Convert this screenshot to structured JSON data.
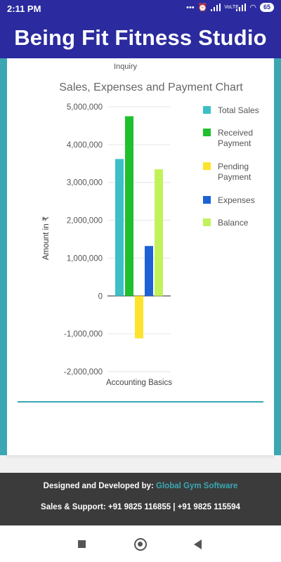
{
  "status_bar": {
    "time": "2:11 PM",
    "battery": "65",
    "volte": "VoLTE"
  },
  "app": {
    "title": "Being Fit Fitness Studio"
  },
  "card": {
    "prev_section_label": "Inquiry"
  },
  "chart_data": {
    "type": "bar",
    "title": "Sales, Expenses and Payment Chart",
    "categories": [
      "Accounting Basics"
    ],
    "xlabel": "Accounting Basics",
    "ylabel": "Amount in ₹",
    "ylim": [
      -2000000,
      5000000
    ],
    "yticks": [
      5000000,
      4000000,
      3000000,
      2000000,
      1000000,
      0,
      -1000000,
      -2000000
    ],
    "ytick_labels": [
      "5,000,000",
      "4,000,000",
      "3,000,000",
      "2,000,000",
      "1,000,000",
      "0",
      "-1,000,000",
      "-2,000,000"
    ],
    "legend_position": "right",
    "grid": true,
    "series": [
      {
        "name": "Total Sales",
        "legend_lines": [
          "Total Sales"
        ],
        "values": [
          3620000
        ],
        "color": "#3dbfc7"
      },
      {
        "name": "Received Payment",
        "legend_lines": [
          "Received",
          "Payment"
        ],
        "values": [
          4750000
        ],
        "color": "#1fc02d"
      },
      {
        "name": "Pending Payment",
        "legend_lines": [
          "Pending",
          "Payment"
        ],
        "values": [
          -1120000
        ],
        "color": "#fde32b"
      },
      {
        "name": "Expenses",
        "legend_lines": [
          "Expenses"
        ],
        "values": [
          1320000
        ],
        "color": "#1c62d6"
      },
      {
        "name": "Balance",
        "legend_lines": [
          "Balance"
        ],
        "values": [
          3350000
        ],
        "color": "#c2f25a"
      }
    ]
  },
  "footer": {
    "designed_prefix": "Designed and Developed by: ",
    "designed_brand": "Global Gym Software",
    "support": "Sales & Support: +91 9825 116855 | +91 9825 115594"
  },
  "colors": {
    "header": "#2b2b9f",
    "accent": "#3aa7b3",
    "footer": "#3b3b3b"
  }
}
